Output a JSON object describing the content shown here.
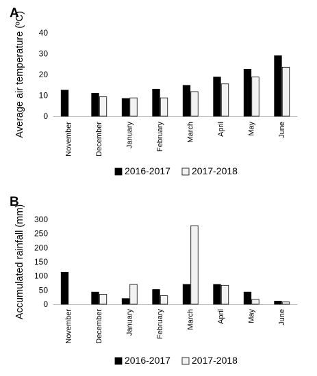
{
  "chart_data": [
    {
      "type": "bar",
      "panel_label": "A",
      "ylabel": "Average  air temperature  (ºC)",
      "ylim": [
        0,
        40
      ],
      "yticks": [
        "0",
        "10",
        "20",
        "30",
        "40"
      ],
      "grid": false,
      "legend_position": "bottom",
      "categories": [
        "November",
        "December",
        "January",
        "February",
        "March",
        "April",
        "May",
        "June"
      ],
      "series": [
        {
          "name": "2016-2017",
          "color": "#000000",
          "values": [
            12.5,
            11.0,
            8.5,
            13.0,
            14.8,
            18.8,
            22.5,
            29.0
          ]
        },
        {
          "name": "2017-2018",
          "color": "#f2f2f2",
          "values": [
            null,
            9.3,
            8.8,
            8.8,
            11.8,
            15.5,
            18.8,
            23.5
          ]
        }
      ]
    },
    {
      "type": "bar",
      "panel_label": "B",
      "ylabel": "Accumulated rainfall (mm)",
      "ylim": [
        0,
        300
      ],
      "yticks": [
        "0",
        "50",
        "100",
        "150",
        "200",
        "250",
        "300"
      ],
      "grid": false,
      "legend_position": "bottom",
      "categories": [
        "November",
        "December",
        "January",
        "February",
        "March",
        "April",
        "May",
        "June"
      ],
      "series": [
        {
          "name": "2016-2017",
          "color": "#000000",
          "values": [
            113,
            43,
            20,
            52,
            70,
            70,
            43,
            11
          ]
        },
        {
          "name": "2017-2018",
          "color": "#f2f2f2",
          "values": [
            null,
            35,
            70,
            30,
            278,
            67,
            17,
            8
          ]
        }
      ]
    }
  ]
}
